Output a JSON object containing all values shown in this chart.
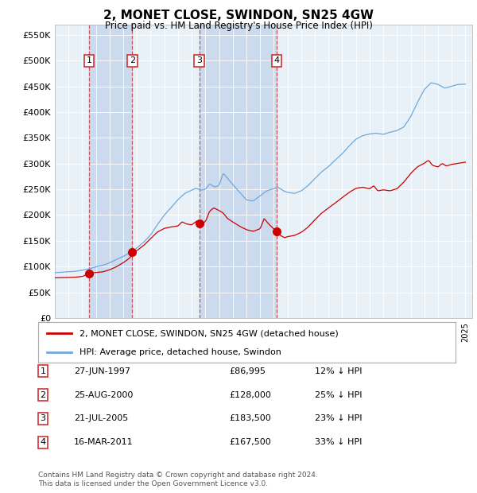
{
  "title": "2, MONET CLOSE, SWINDON, SN25 4GW",
  "subtitle": "Price paid vs. HM Land Registry's House Price Index (HPI)",
  "background_color": "#ffffff",
  "plot_bg_color": "#e8f0f8",
  "ylabel_ticks": [
    "£0",
    "£50K",
    "£100K",
    "£150K",
    "£200K",
    "£250K",
    "£300K",
    "£350K",
    "£400K",
    "£450K",
    "£500K",
    "£550K"
  ],
  "ylim": [
    0,
    570000
  ],
  "ytick_vals": [
    0,
    50000,
    100000,
    150000,
    200000,
    250000,
    300000,
    350000,
    400000,
    450000,
    500000,
    550000
  ],
  "sales": [
    {
      "date": 1997.49,
      "price": 86995,
      "label": "1"
    },
    {
      "date": 2000.65,
      "price": 128000,
      "label": "2"
    },
    {
      "date": 2005.55,
      "price": 183500,
      "label": "3"
    },
    {
      "date": 2011.21,
      "price": 167500,
      "label": "4"
    }
  ],
  "sale_labels": [
    {
      "num": "1",
      "date_str": "27-JUN-1997",
      "price_str": "£86,995",
      "hpi_str": "12% ↓ HPI"
    },
    {
      "num": "2",
      "date_str": "25-AUG-2000",
      "price_str": "£128,000",
      "hpi_str": "25% ↓ HPI"
    },
    {
      "num": "3",
      "date_str": "21-JUL-2005",
      "price_str": "£183,500",
      "hpi_str": "23% ↓ HPI"
    },
    {
      "num": "4",
      "date_str": "16-MAR-2011",
      "price_str": "£167,500",
      "hpi_str": "33% ↓ HPI"
    }
  ],
  "hpi_color": "#6fa8dc",
  "sale_color": "#cc0000",
  "shade_color": "#c8d8ec",
  "footer": "Contains HM Land Registry data © Crown copyright and database right 2024.\nThis data is licensed under the Open Government Licence v3.0.",
  "xlim_left": 1995.0,
  "xlim_right": 2025.5
}
